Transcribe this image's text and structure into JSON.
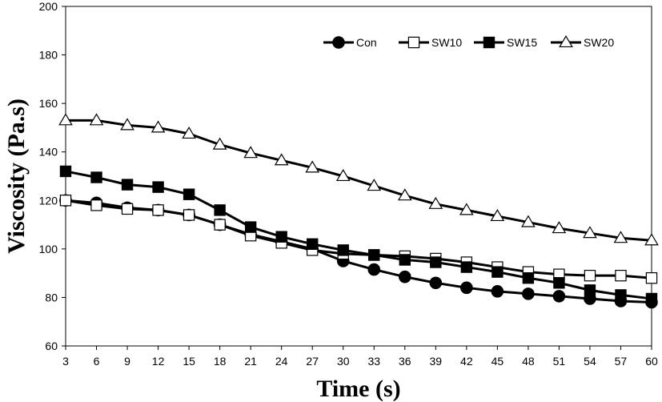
{
  "chart_data": {
    "type": "line",
    "x": [
      3,
      6,
      9,
      12,
      15,
      18,
      21,
      24,
      27,
      30,
      33,
      36,
      39,
      42,
      45,
      48,
      51,
      54,
      57,
      60
    ],
    "xlabel": "Time (s)",
    "ylabel": "Viscosity (Pa.s)",
    "xticks": [
      "3",
      "6",
      "9",
      "12",
      "15",
      "18",
      "21",
      "24",
      "27",
      "30",
      "33",
      "36",
      "39",
      "42",
      "45",
      "48",
      "51",
      "54",
      "57",
      "60"
    ],
    "yticks": [
      "60",
      "80",
      "100",
      "120",
      "140",
      "160",
      "180",
      "200"
    ],
    "ylim": [
      60,
      200
    ],
    "grid": false,
    "legend_position": "top-right",
    "series": [
      {
        "name": "Con",
        "marker": "circle",
        "fill": "#000000",
        "values": [
          120,
          119,
          117,
          116,
          114,
          110,
          106,
          103,
          100,
          95,
          91.5,
          88.5,
          86,
          84,
          82.5,
          81.5,
          80.5,
          79.5,
          78.5,
          78
        ]
      },
      {
        "name": "SW10",
        "marker": "square",
        "fill": "#ffffff",
        "values": [
          120,
          118,
          116.5,
          116,
          114,
          110,
          105.5,
          102.5,
          99.5,
          98,
          97.5,
          97,
          96,
          94.5,
          92.5,
          90.5,
          89.5,
          89,
          89,
          88
        ]
      },
      {
        "name": "SW15",
        "marker": "square",
        "fill": "#000000",
        "values": [
          132,
          129.5,
          126.5,
          125.5,
          122.5,
          116,
          109,
          105,
          102,
          99.5,
          97.5,
          95.5,
          94.5,
          92.5,
          90.5,
          88,
          86,
          83,
          81,
          79.5
        ]
      },
      {
        "name": "SW20",
        "marker": "triangle",
        "fill": "#ffffff",
        "values": [
          153,
          153,
          151,
          150,
          147.5,
          143,
          139.5,
          136.5,
          133.5,
          130,
          126,
          122,
          118.5,
          116,
          113.5,
          111,
          108.5,
          106.5,
          104.5,
          103.5
        ]
      }
    ]
  }
}
